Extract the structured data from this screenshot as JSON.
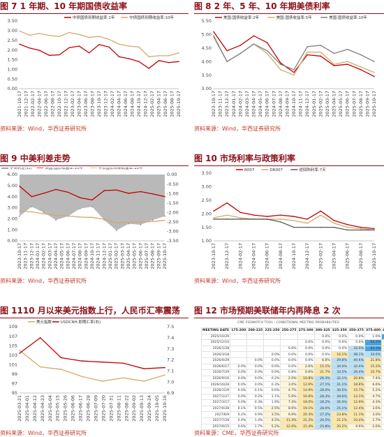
{
  "panels": [
    {
      "title": "图 7 1 年期、10 年期国债收益率",
      "source": "资料来源：Wind，华西证券研究所",
      "chart_data": {
        "type": "line",
        "x": [
          "2021-10-17",
          "2022-01-17",
          "2022-04-17",
          "2022-07-17",
          "2022-10-17",
          "2023-01-17",
          "2023-04-17",
          "2023-07-17",
          "2023-10-17",
          "2024-01-17",
          "2024-04-17",
          "2024-07-17",
          "2024-10-17",
          "2025-01-17",
          "2025-04-17",
          "2025-07-17",
          "2025-10-17"
        ],
        "xticks": [
          "2021-10-17",
          "2021-12-17",
          "2022-02-17",
          "2022-04-17",
          "2022-06-17",
          "2022-08-17",
          "2022-10-17",
          "2022-12-17",
          "2023-02-17",
          "2023-04-17",
          "2023-06-17",
          "2023-08-17",
          "2023-10-17",
          "2023-12-17",
          "2024-02-17",
          "2024-04-17",
          "2024-06-17",
          "2024-08-17",
          "2024-10-17",
          "2024-12-17",
          "2025-02-17",
          "2025-04-17",
          "2025-06-17",
          "2025-08-17",
          "2025-10-17"
        ],
        "series": [
          {
            "name": "中债国债到期收益率:1年",
            "color": "#c00000",
            "values": [
              2.3,
              2.1,
              1.98,
              1.72,
              1.75,
              2.12,
              2.2,
              1.85,
              2.28,
              2.15,
              1.65,
              1.55,
              1.4,
              1.05,
              1.45,
              1.35,
              1.4
            ]
          },
          {
            "name": "中债国债到期收益率:10年",
            "color": "#d4a96a",
            "values": [
              2.98,
              2.76,
              2.85,
              2.75,
              2.7,
              2.9,
              2.8,
              2.65,
              2.7,
              2.55,
              2.3,
              2.2,
              2.15,
              1.65,
              1.7,
              1.7,
              1.85
            ]
          }
        ],
        "ylim": [
          0,
          3.5
        ],
        "yticks": [
          "0.00",
          "0.50",
          "1.00",
          "1.50",
          "2.00",
          "2.50",
          "3.00",
          "3.50"
        ]
      }
    },
    {
      "title": "图 8 2 年、5 年、10 年期美债利率",
      "source": "资料来源：Wind，华西证券研究所",
      "chart_data": {
        "type": "line",
        "x": [
          "2023-10-17",
          "2023-12-17",
          "2024-02-17",
          "2024-04-17",
          "2024-06-17",
          "2024-08-17",
          "2024-10-17",
          "2024-12-17",
          "2025-02-17",
          "2025-04-17",
          "2025-06-17",
          "2025-08-17",
          "2025-10-17"
        ],
        "xticks": [
          "2023-10-17",
          "2023-11-17",
          "2023-12-17",
          "2024-01-17",
          "2024-02-17",
          "2024-03-17",
          "2024-04-17",
          "2024-05-17",
          "2024-06-17",
          "2024-07-17",
          "2024-08-17",
          "2024-09-17",
          "2024-10-17",
          "2024-11-17",
          "2024-12-17",
          "2025-01-17",
          "2025-02-17",
          "2025-03-17",
          "2025-04-17",
          "2025-05-17",
          "2025-06-17",
          "2025-07-17",
          "2025-08-17",
          "2025-09-17",
          "2025-10-17"
        ],
        "series": [
          {
            "name": "美国:国债收益率:2年",
            "color": "#c00000",
            "values": [
              5.1,
              4.4,
              4.6,
              4.95,
              4.7,
              3.95,
              3.6,
              4.25,
              4.2,
              3.85,
              3.9,
              3.7,
              3.45
            ]
          },
          {
            "name": "美国:国债收益率:5年",
            "color": "#d4a96a",
            "values": [
              4.9,
              4.0,
              4.3,
              4.65,
              4.3,
              3.7,
              3.5,
              4.35,
              4.35,
              3.9,
              4.0,
              3.8,
              3.6
            ]
          },
          {
            "name": "美国:国债收益率:10年",
            "color": "#7f7f7f",
            "values": [
              4.95,
              4.0,
              4.3,
              4.65,
              4.4,
              3.9,
              3.7,
              4.55,
              4.6,
              4.3,
              4.45,
              4.25,
              4.0
            ]
          }
        ],
        "ylim": [
          3.0,
          5.5
        ],
        "yticks": [
          "3.00",
          "3.50",
          "4.00",
          "4.50",
          "5.00",
          "5.50"
        ]
      }
    },
    {
      "title": "图 9 中美利差走势",
      "source": "资料来源：Wind，华西证券研究所",
      "chart_data": {
        "type": "line",
        "x": [
          "2023-10-17",
          "2023-12-17",
          "2024-02-17",
          "2024-04-17",
          "2024-06-17",
          "2024-08-17",
          "2024-10-17",
          "2024-12-17",
          "2025-02-17",
          "2025-04-17",
          "2025-06-17",
          "2025-08-17",
          "2025-10-17"
        ],
        "xticks": [
          "2023-10-17",
          "2023-11-17",
          "2023-12-17",
          "2024-01-17",
          "2024-02-17",
          "2024-03-17",
          "2024-04-17",
          "2024-05-17",
          "2024-06-17",
          "2024-07-17",
          "2024-08-17",
          "2024-09-17",
          "2024-10-17",
          "2024-11-17",
          "2024-12-17",
          "2025-01-17",
          "2025-02-17",
          "2025-03-17",
          "2025-04-17",
          "2025-05-17",
          "2025-06-17",
          "2025-07-17",
          "2025-08-17",
          "2025-09-17",
          "2025-10-17"
        ],
        "series": [
          {
            "name": "中美利差(右)",
            "color": "#7f7f7f",
            "axis": "right",
            "values": [
              -2.2,
              -1.7,
              -2.0,
              -2.4,
              -2.2,
              -1.8,
              -1.7,
              -2.4,
              -2.95,
              -2.6,
              -2.65,
              -2.4,
              -2.2
            ]
          },
          {
            "name": "美国:国债收益率:10年",
            "color": "#c00000",
            "values": [
              4.95,
              4.0,
              4.3,
              4.65,
              4.4,
              3.9,
              3.7,
              4.55,
              4.6,
              4.3,
              4.45,
              4.25,
              4.0
            ]
          },
          {
            "name": "中债国债到期收益率:10年",
            "color": "#d4a96a",
            "values": [
              2.7,
              2.62,
              2.45,
              2.3,
              2.25,
              2.15,
              2.12,
              1.95,
              1.62,
              1.7,
              1.68,
              1.75,
              1.85
            ]
          }
        ],
        "ylim": [
          0,
          6
        ],
        "yticks": [
          "0.00",
          "1.00",
          "2.00",
          "3.00",
          "4.00",
          "5.00",
          "6.00"
        ],
        "y2lim": [
          -3.5,
          0
        ],
        "y2ticks": [
          "0.00",
          "-0.50",
          "-1.00",
          "-1.50",
          "-2.00",
          "-2.50",
          "-3.00",
          "-3.50"
        ]
      }
    },
    {
      "title": "图 10 市场利率与政策利率",
      "source": "资料来源：Wind，华西证券研究所",
      "chart_data": {
        "type": "line",
        "x": [
          "2023-10-17",
          "2023-12-17",
          "2024-02-17",
          "2024-04-17",
          "2024-06-17",
          "2024-08-17",
          "2024-10-17",
          "2024-12-17",
          "2025-02-17",
          "2025-04-17",
          "2025-06-17",
          "2025-08-17",
          "2025-10-17"
        ],
        "xticks": [
          "2023-10-17",
          "2023-12-17",
          "2024-02-17",
          "2024-04-17",
          "2024-06-17",
          "2024-08-17",
          "2024-10-17",
          "2024-12-17",
          "2025-02-17",
          "2025-04-17",
          "2025-06-17",
          "2025-08-17",
          "2025-10-17"
        ],
        "series": [
          {
            "name": "R007",
            "color": "#c00000",
            "values": [
              2.1,
              2.4,
              2.05,
              1.95,
              1.9,
              1.95,
              1.9,
              1.8,
              2.1,
              1.75,
              1.6,
              1.5,
              1.45
            ]
          },
          {
            "name": "DR007",
            "color": "#d4a96a",
            "values": [
              1.85,
              1.95,
              1.85,
              1.8,
              1.8,
              1.8,
              1.75,
              1.65,
              1.95,
              1.65,
              1.5,
              1.45,
              1.4
            ]
          },
          {
            "name": "逆回购利率:7天",
            "color": "#595959",
            "values": [
              1.8,
              1.8,
              1.8,
              1.8,
              1.8,
              1.7,
              1.5,
              1.5,
              1.5,
              1.5,
              1.4,
              1.4,
              1.4
            ]
          }
        ],
        "ylim": [
          1.0,
          3.5
        ],
        "yticks": [
          "1.00",
          "1.50",
          "2.00",
          "2.50",
          "3.00",
          "3.50"
        ]
      }
    },
    {
      "title": "图 1110 月以来美元指数上行，人民币汇率震荡",
      "source": "资料来源：Wind，华西证券研究所",
      "chart_data": {
        "type": "line",
        "x": [
          "2025-03-21",
          "2025-04-21",
          "2025-05-21",
          "2025-06-21",
          "2025-07-21",
          "2025-08-21",
          "2025-09-21",
          "2025-10-21"
        ],
        "xticks": [
          "2025-03-21",
          "2025-04-01",
          "2025-04-12",
          "2025-04-23",
          "2025-05-04",
          "2025-05-15",
          "2025-05-26",
          "2025-06-06",
          "2025-06-17",
          "2025-06-28",
          "2025-07-09",
          "2025-07-20",
          "2025-07-31",
          "2025-08-11",
          "2025-08-22",
          "2025-09-02",
          "2025-09-13",
          "2025-09-24",
          "2025-10-05",
          "2025-10-16"
        ],
        "series": [
          {
            "name": "美元指数",
            "color": "#d4a96a",
            "values": [
              104.0,
              100.5,
              100.0,
              98.5,
              97.5,
              98.2,
              97.5,
              98.8
            ]
          },
          {
            "name": "USDCNH:即期汇率(右)",
            "color": "#c00000",
            "axis": "right",
            "values": [
              7.26,
              7.4,
              7.22,
              7.19,
              7.18,
              7.17,
              7.12,
              7.13
            ]
          }
        ],
        "ylim": [
          95,
          109
        ],
        "yticks": [
          "95",
          "97",
          "99",
          "101",
          "103",
          "105",
          "107",
          "109"
        ],
        "y2lim": [
          6.9,
          7.5
        ],
        "y2ticks": [
          "6.9",
          "7.0",
          "7.1",
          "7.2",
          "7.3",
          "7.4",
          "7.5"
        ]
      }
    },
    {
      "title": "图 12 市场预期美联储年内再降息 2 次",
      "source": "资料来源：CME，华西证券研究所",
      "table": {
        "caption": "CME FEDWATCH TOOL - CONDITIONAL MEETING PROBABILITIES",
        "headers": [
          "MEETING DATE",
          "175-200",
          "200-225",
          "225-250",
          "250-275",
          "275-300",
          "300-325",
          "325-350",
          "350-375",
          "375-400",
          "400-425"
        ],
        "rows": [
          [
            "2025/10/29",
            "",
            "",
            "",
            "",
            "",
            "0.0%",
            "0.0%",
            "0.0%",
            "1.0%",
            "99.0%"
          ],
          [
            "2025/12/10",
            "",
            "",
            "",
            "",
            "0.0%",
            "0.0%",
            "0.0%",
            "0.0%",
            "94.3%",
            "5.7%"
          ],
          [
            "2026/1/28",
            "",
            "",
            "",
            "0.0%",
            "0.0%",
            "0.0%",
            "0.0%",
            "32.0%",
            "64.1%",
            "3.9%"
          ],
          [
            "2026/3/18",
            "",
            "",
            "0.0%",
            "0.0%",
            "0.0%",
            "0.0%",
            "16.1%",
            "48.1%",
            "34.0%",
            "1.8%"
          ],
          [
            "2026/4/29",
            "",
            "0.0%",
            "0.0%",
            "0.0%",
            "0.0%",
            "6.6%",
            "29.8%",
            "40.6%",
            "21.8%",
            "1.1%"
          ],
          [
            "2026/6/17",
            "0.0%",
            "0.0%",
            "0.0%",
            "0.0%",
            "2.6%",
            "15.1%",
            "34.0%",
            "32.4%",
            "15.2%",
            "0.7%"
          ],
          [
            "2026/7/29",
            "0.0%",
            "0.0%",
            "0.0%",
            "0.8%",
            "6.6%",
            "21.7%",
            "33.5%",
            "26.4%",
            "10.7%",
            "0.4%"
          ],
          [
            "2026/9/16",
            "0.0%",
            "0.0%",
            "0.2%",
            "2.0%",
            "10.8%",
            "26.3%",
            "32.1%",
            "20.8%",
            "7.4%",
            "0.3%"
          ],
          [
            "2026/10/28",
            "0.0%",
            "0.0%",
            "0.3%",
            "3.0%",
            "12.6%",
            "27.1%",
            "31.1%",
            "18.8%",
            "6.6%",
            "0.2%"
          ],
          [
            "2026/12/9",
            "0.0%",
            "0.1%",
            "0.6%",
            "4.7%",
            "14.9%",
            "28.0%",
            "30.5%",
            "15.7%",
            "5.2%",
            "0.2%"
          ],
          [
            "2027/1/27",
            "0.0%",
            "0.2%",
            "1.1%",
            "5.9%",
            "16.6%",
            "28.3%",
            "28.6%",
            "14.1%",
            "4.7%",
            "0.2%"
          ],
          [
            "2027/3/17",
            "0.0%",
            "0.3%",
            "1.9%",
            "7.4%",
            "18.0%",
            "28.2%",
            "26.4%",
            "12.9%",
            "4.3%",
            "0.1%"
          ],
          [
            "2027/4/28",
            "0.1%",
            "0.5%",
            "2.5%",
            "8.6%",
            "19.1%",
            "28.0%",
            "25.1%",
            "12.4%",
            "3.6%",
            "0.1%"
          ],
          [
            "2027/6/9",
            "0.2%",
            "0.9%",
            "3.5%",
            "9.9%",
            "20.3%",
            "27.2%",
            "23.8%",
            "11.1%",
            "3.0%",
            "0.1%"
          ],
          [
            "2027/7/28",
            "0.4%",
            "1.4%",
            "4.5%",
            "11.3%",
            "21.2%",
            "26.5%",
            "21.1%",
            "10.4%",
            "2.7%",
            "0.1%"
          ],
          [
            "2027/9/15",
            "0.6%",
            "1.7%",
            "5.2%",
            "12.0%",
            "21.4%",
            "25.8%",
            "20.2%",
            "9.9%",
            "2.6%",
            "0.1%"
          ]
        ]
      }
    }
  ]
}
